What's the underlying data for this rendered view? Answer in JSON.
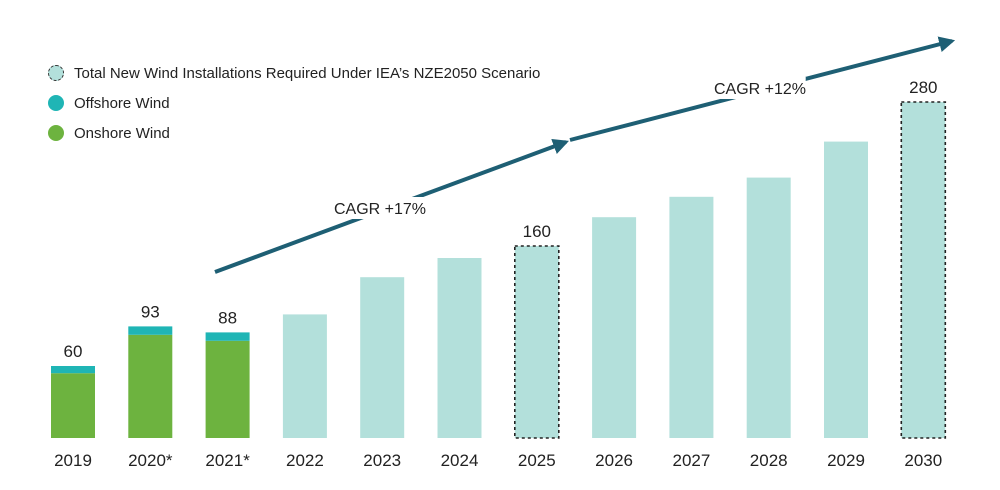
{
  "legend": {
    "total": "Total New Wind Installations Required Under IEA’s NZE2050 Scenario",
    "offshore": "Offshore Wind",
    "onshore": "Onshore Wind"
  },
  "colors": {
    "onshore": "#6db33f",
    "offshore": "#1fb5b5",
    "required": "#b3e0db",
    "arrow": "#1e5f74"
  },
  "chart_data": {
    "type": "bar",
    "categories": [
      "2019",
      "2020*",
      "2021*",
      "2022",
      "2023",
      "2024",
      "2025",
      "2026",
      "2027",
      "2028",
      "2029",
      "2030"
    ],
    "series": [
      {
        "name": "Onshore Wind",
        "values": [
          54,
          86,
          81,
          null,
          null,
          null,
          null,
          null,
          null,
          null,
          null,
          null
        ]
      },
      {
        "name": "Offshore Wind",
        "values": [
          6,
          7,
          7,
          null,
          null,
          null,
          null,
          null,
          null,
          null,
          null,
          null
        ]
      },
      {
        "name": "Total New Wind Installations Required Under IEA’s NZE2050 Scenario",
        "values": [
          null,
          null,
          null,
          103,
          134,
          150,
          160,
          184,
          201,
          217,
          247,
          280
        ]
      }
    ],
    "data_labels": [
      {
        "category": "2019",
        "text": "60"
      },
      {
        "category": "2020*",
        "text": "93"
      },
      {
        "category": "2021*",
        "text": "88"
      },
      {
        "category": "2025",
        "text": "160"
      },
      {
        "category": "2030",
        "text": "280"
      }
    ],
    "highlighted": [
      "2025",
      "2030"
    ],
    "annotations": [
      {
        "text": "CAGR +17%",
        "from": "2021*",
        "to": "2025"
      },
      {
        "text": "CAGR +12%",
        "from": "2025",
        "to": "2030"
      }
    ],
    "ylim": [
      0,
      300
    ],
    "grid": false,
    "legend_position": "top-left"
  }
}
